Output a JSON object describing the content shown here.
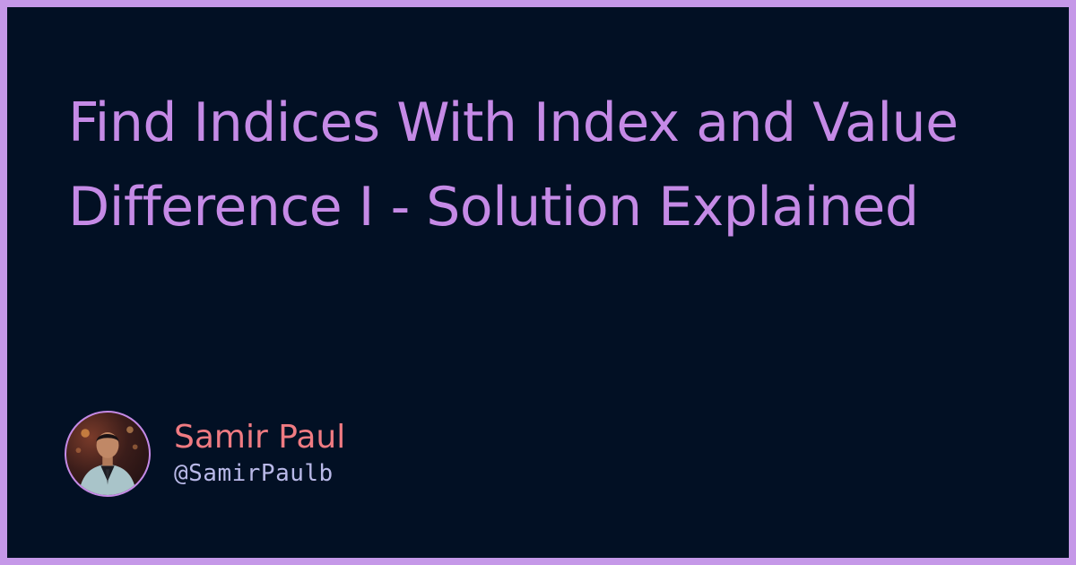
{
  "post": {
    "title": "Find Indices With Index and Value Difference I - Solution Explained"
  },
  "author": {
    "name": "Samir Paul",
    "handle": "@SamirPaulb"
  },
  "colors": {
    "border": "#c598e8",
    "background": "#021024",
    "title": "#c58ae6",
    "author_name": "#f07b82",
    "author_handle": "#b9b9e8"
  }
}
